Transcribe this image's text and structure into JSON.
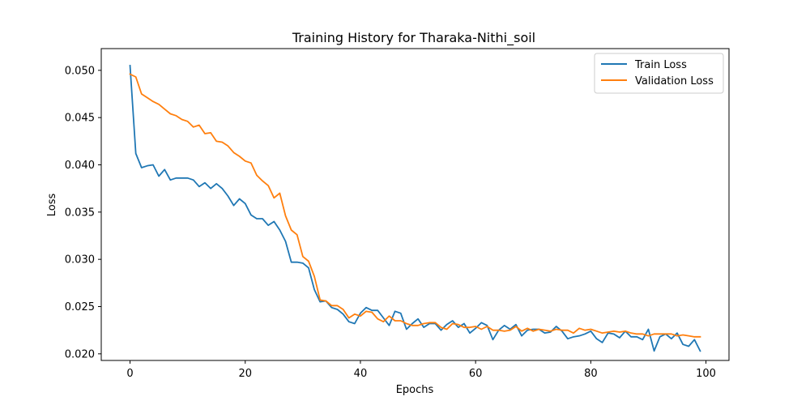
{
  "chart_data": {
    "type": "line",
    "title": "Training History for Tharaka-Nithi_soil",
    "xlabel": "Epochs",
    "ylabel": "Loss",
    "xlim": [
      -5,
      104
    ],
    "ylim": [
      0.0193,
      0.0523
    ],
    "xticks": [
      0,
      20,
      40,
      60,
      80,
      100
    ],
    "xtick_labels": [
      "0",
      "20",
      "40",
      "60",
      "80",
      "100"
    ],
    "yticks": [
      0.02,
      0.025,
      0.03,
      0.035,
      0.04,
      0.045,
      0.05
    ],
    "ytick_labels": [
      "0.020",
      "0.025",
      "0.030",
      "0.035",
      "0.040",
      "0.045",
      "0.050"
    ],
    "grid": false,
    "legend_position": "top-right",
    "x": [
      0,
      1,
      2,
      3,
      4,
      5,
      6,
      7,
      8,
      9,
      10,
      11,
      12,
      13,
      14,
      15,
      16,
      17,
      18,
      19,
      20,
      21,
      22,
      23,
      24,
      25,
      26,
      27,
      28,
      29,
      30,
      31,
      32,
      33,
      34,
      35,
      36,
      37,
      38,
      39,
      40,
      41,
      42,
      43,
      44,
      45,
      46,
      47,
      48,
      49,
      50,
      51,
      52,
      53,
      54,
      55,
      56,
      57,
      58,
      59,
      60,
      61,
      62,
      63,
      64,
      65,
      66,
      67,
      68,
      69,
      70,
      71,
      72,
      73,
      74,
      75,
      76,
      77,
      78,
      79,
      80,
      81,
      82,
      83,
      84,
      85,
      86,
      87,
      88,
      89,
      90,
      91,
      92,
      93,
      94,
      95,
      96,
      97,
      98,
      99
    ],
    "series": [
      {
        "name": "Train Loss",
        "color": "#1f77b4",
        "values": [
          0.0505,
          0.0412,
          0.0397,
          0.0399,
          0.04,
          0.0388,
          0.0395,
          0.0384,
          0.0386,
          0.0386,
          0.0386,
          0.0384,
          0.0377,
          0.0381,
          0.0375,
          0.038,
          0.0375,
          0.0367,
          0.0357,
          0.0364,
          0.0359,
          0.0347,
          0.0343,
          0.0343,
          0.0336,
          0.034,
          0.0331,
          0.0319,
          0.0297,
          0.0297,
          0.0296,
          0.0291,
          0.0268,
          0.0255,
          0.0256,
          0.0249,
          0.0247,
          0.0242,
          0.0234,
          0.0232,
          0.0243,
          0.0249,
          0.0246,
          0.0246,
          0.0238,
          0.023,
          0.0245,
          0.0243,
          0.0226,
          0.0232,
          0.0237,
          0.0228,
          0.0232,
          0.0232,
          0.0225,
          0.0231,
          0.0235,
          0.0228,
          0.0232,
          0.0222,
          0.0227,
          0.0233,
          0.023,
          0.0215,
          0.0225,
          0.023,
          0.0226,
          0.0231,
          0.0219,
          0.0225,
          0.0226,
          0.0226,
          0.0222,
          0.0223,
          0.0229,
          0.0224,
          0.0216,
          0.0218,
          0.0219,
          0.0221,
          0.0224,
          0.0216,
          0.0212,
          0.0222,
          0.0221,
          0.0217,
          0.0224,
          0.0218,
          0.0218,
          0.0215,
          0.0226,
          0.0203,
          0.0218,
          0.0221,
          0.0216,
          0.0222,
          0.021,
          0.0208,
          0.0215,
          0.0203
        ]
      },
      {
        "name": "Validation Loss",
        "color": "#ff7f0e",
        "values": [
          0.0496,
          0.0493,
          0.0475,
          0.0471,
          0.0467,
          0.0464,
          0.0459,
          0.0454,
          0.0452,
          0.0448,
          0.0446,
          0.044,
          0.0442,
          0.0433,
          0.0434,
          0.0425,
          0.0424,
          0.042,
          0.0413,
          0.0409,
          0.0404,
          0.0402,
          0.0389,
          0.0383,
          0.0378,
          0.0365,
          0.037,
          0.0346,
          0.0331,
          0.0326,
          0.0303,
          0.0298,
          0.0282,
          0.0257,
          0.0256,
          0.0251,
          0.0251,
          0.0247,
          0.0238,
          0.0242,
          0.024,
          0.0245,
          0.0244,
          0.0237,
          0.0234,
          0.024,
          0.0235,
          0.0235,
          0.0232,
          0.023,
          0.023,
          0.0232,
          0.0233,
          0.0233,
          0.0228,
          0.0226,
          0.0232,
          0.0231,
          0.0228,
          0.0228,
          0.0229,
          0.0226,
          0.0229,
          0.0225,
          0.0225,
          0.0224,
          0.0225,
          0.0229,
          0.0224,
          0.0227,
          0.0224,
          0.0226,
          0.0225,
          0.0224,
          0.0226,
          0.0225,
          0.0225,
          0.0222,
          0.0227,
          0.0225,
          0.0226,
          0.0224,
          0.0222,
          0.0223,
          0.0224,
          0.0223,
          0.0224,
          0.0222,
          0.0221,
          0.0221,
          0.0219,
          0.0221,
          0.0221,
          0.0221,
          0.0221,
          0.0219,
          0.022,
          0.0219,
          0.0218,
          0.0218
        ]
      }
    ]
  }
}
